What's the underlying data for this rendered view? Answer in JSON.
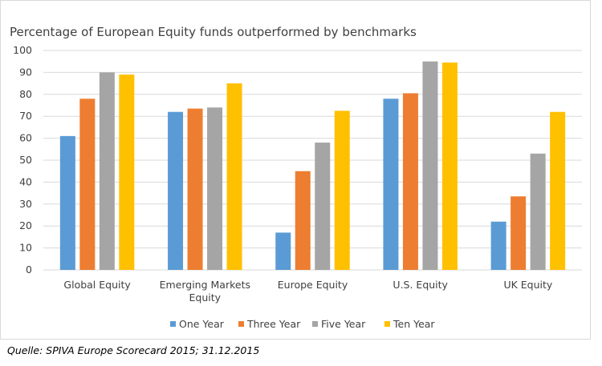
{
  "chart_data": {
    "type": "bar",
    "title": "Percentage of European Equity funds outperformed by benchmarks",
    "xlabel": "",
    "ylabel": "",
    "ylim": [
      0,
      100
    ],
    "yticks": [
      "0",
      "10",
      "20",
      "30",
      "40",
      "50",
      "60",
      "70",
      "80",
      "90",
      "100"
    ],
    "grid": true,
    "legend_position": "bottom",
    "categories": [
      [
        "Global Equity"
      ],
      [
        "Emerging Markets",
        "Equity"
      ],
      [
        "Europe Equity"
      ],
      [
        "U.S. Equity"
      ],
      [
        "UK Equity"
      ]
    ],
    "series": [
      {
        "name": "One Year",
        "color": "#5b9bd5",
        "values": [
          61,
          72,
          17,
          78,
          22
        ]
      },
      {
        "name": "Three Year",
        "color": "#ed7d31",
        "values": [
          78,
          73.5,
          45,
          80.5,
          33.5
        ]
      },
      {
        "name": "Five Year",
        "color": "#a5a5a5",
        "values": [
          90,
          74,
          58,
          95,
          53
        ]
      },
      {
        "name": "Ten Year",
        "color": "#ffc000",
        "values": [
          89,
          85,
          72.5,
          94.5,
          72
        ]
      }
    ]
  },
  "source_note": "Quelle: SPIVA Europe Scorecard 2015; 31.12.2015"
}
